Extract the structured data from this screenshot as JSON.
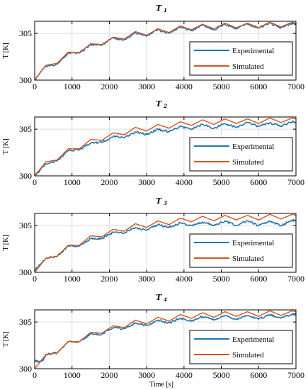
{
  "colors": {
    "experimental": "#1f77b4",
    "simulated": "#d95319"
  },
  "xlabel": "Time [s]",
  "chart_data": [
    {
      "type": "line",
      "title_main": "T",
      "title_sub": "1",
      "ylabel": "T [K]",
      "xlim": [
        0,
        7000
      ],
      "ylim": [
        300,
        306.3
      ],
      "xticks": [
        "0",
        "1000",
        "2000",
        "3000",
        "4000",
        "5000",
        "6000",
        "7000"
      ],
      "yticks": [
        "300",
        "305"
      ],
      "grid": true,
      "legend_position": "lower-right",
      "series": [
        {
          "name": "Experimental",
          "x": [
            0,
            300,
            600,
            900,
            1200,
            1500,
            1800,
            2100,
            2400,
            2700,
            3000,
            3300,
            3600,
            3900,
            4200,
            4500,
            4800,
            5100,
            5400,
            5700,
            6000,
            6300,
            6600,
            6900,
            7000
          ],
          "y": [
            300.0,
            301.5,
            301.7,
            302.9,
            302.9,
            303.8,
            303.8,
            304.5,
            304.3,
            305.1,
            304.7,
            305.4,
            305.0,
            305.7,
            305.3,
            305.9,
            305.4,
            306.0,
            305.5,
            306.0,
            305.6,
            306.1,
            305.6,
            306.1,
            306.0
          ]
        },
        {
          "name": "Simulated",
          "x": [
            0,
            300,
            600,
            900,
            1200,
            1500,
            1800,
            2100,
            2400,
            2700,
            3000,
            3300,
            3600,
            3900,
            4200,
            4500,
            4800,
            5100,
            5400,
            5700,
            6000,
            6300,
            6600,
            6900,
            7000
          ],
          "y": [
            300.0,
            301.6,
            301.8,
            303.0,
            302.9,
            303.9,
            303.8,
            304.6,
            304.4,
            305.2,
            304.8,
            305.5,
            305.1,
            305.8,
            305.4,
            306.0,
            305.5,
            306.1,
            305.6,
            306.1,
            305.6,
            306.2,
            305.7,
            306.2,
            306.1
          ]
        }
      ]
    },
    {
      "type": "line",
      "title_main": "T",
      "title_sub": "2",
      "ylabel": "T [K]",
      "xlim": [
        0,
        7000
      ],
      "ylim": [
        300,
        306.3
      ],
      "xticks": [
        "0",
        "1000",
        "2000",
        "3000",
        "4000",
        "5000",
        "6000",
        "7000"
      ],
      "yticks": [
        "300",
        "305"
      ],
      "grid": true,
      "legend_position": "lower-right",
      "series": [
        {
          "name": "Experimental",
          "x": [
            0,
            300,
            600,
            900,
            1200,
            1500,
            1800,
            2100,
            2400,
            2700,
            3000,
            3300,
            3600,
            3900,
            4200,
            4500,
            4800,
            5100,
            5400,
            5700,
            6000,
            6300,
            6600,
            6900,
            7000
          ],
          "y": [
            300.0,
            301.3,
            301.6,
            302.7,
            302.8,
            303.5,
            303.6,
            304.2,
            304.1,
            304.7,
            304.4,
            305.0,
            304.7,
            305.3,
            305.0,
            305.5,
            305.1,
            305.6,
            305.2,
            305.7,
            305.3,
            305.7,
            305.3,
            305.8,
            305.7
          ]
        },
        {
          "name": "Simulated",
          "x": [
            0,
            300,
            600,
            900,
            1200,
            1500,
            1800,
            2100,
            2400,
            2700,
            3000,
            3300,
            3600,
            3900,
            4200,
            4500,
            4800,
            5100,
            5400,
            5700,
            6000,
            6300,
            6600,
            6900,
            7000
          ],
          "y": [
            300.0,
            301.5,
            301.7,
            302.9,
            302.9,
            303.9,
            303.8,
            304.6,
            304.4,
            305.2,
            304.8,
            305.5,
            305.1,
            305.8,
            305.4,
            306.0,
            305.5,
            306.1,
            305.6,
            306.1,
            305.6,
            306.2,
            305.7,
            306.2,
            306.1
          ]
        }
      ]
    },
    {
      "type": "line",
      "title_main": "T",
      "title_sub": "3",
      "ylabel": "T [K]",
      "xlim": [
        0,
        7000
      ],
      "ylim": [
        300,
        306.3
      ],
      "xticks": [
        "0",
        "1000",
        "2000",
        "3000",
        "4000",
        "5000",
        "6000",
        "7000"
      ],
      "yticks": [
        "300",
        "305"
      ],
      "grid": true,
      "legend_position": "lower-right",
      "series": [
        {
          "name": "Experimental",
          "x": [
            0,
            300,
            600,
            900,
            1200,
            1500,
            1800,
            2100,
            2400,
            2700,
            3000,
            3300,
            3600,
            3900,
            4200,
            4500,
            4800,
            5100,
            5400,
            5700,
            6000,
            6300,
            6600,
            6900,
            7000
          ],
          "y": [
            300.2,
            301.5,
            301.7,
            302.8,
            302.8,
            303.6,
            303.6,
            304.3,
            304.2,
            304.8,
            304.5,
            305.1,
            304.8,
            305.3,
            305.0,
            305.4,
            305.0,
            305.5,
            305.0,
            305.5,
            305.0,
            305.5,
            305.0,
            305.6,
            305.5
          ]
        },
        {
          "name": "Simulated",
          "x": [
            0,
            300,
            600,
            900,
            1200,
            1500,
            1800,
            2100,
            2400,
            2700,
            3000,
            3300,
            3600,
            3900,
            4200,
            4500,
            4800,
            5100,
            5400,
            5700,
            6000,
            6300,
            6600,
            6900,
            7000
          ],
          "y": [
            300.0,
            301.5,
            301.7,
            302.9,
            302.9,
            303.9,
            303.8,
            304.6,
            304.4,
            305.2,
            304.8,
            305.5,
            305.1,
            305.8,
            305.4,
            306.0,
            305.5,
            306.1,
            305.6,
            306.1,
            305.6,
            306.2,
            305.7,
            306.2,
            306.1
          ]
        }
      ]
    },
    {
      "type": "line",
      "title_main": "T",
      "title_sub": "4",
      "ylabel": "T [K]",
      "xlabel": "Time [s]",
      "xlim": [
        0,
        7000
      ],
      "ylim": [
        300,
        306.3
      ],
      "xticks": [
        "0",
        "1000",
        "2000",
        "3000",
        "4000",
        "5000",
        "6000",
        "7000"
      ],
      "yticks": [
        "300",
        "305"
      ],
      "grid": true,
      "legend_position": "lower-right",
      "series": [
        {
          "name": "Experimental",
          "x": [
            0,
            200,
            300,
            600,
            900,
            1200,
            1500,
            1800,
            2100,
            2400,
            2700,
            3000,
            3300,
            3600,
            3900,
            4200,
            4500,
            4800,
            5100,
            5400,
            5700,
            6000,
            6300,
            6600,
            6900,
            7000
          ],
          "y": [
            300.8,
            300.8,
            301.5,
            301.7,
            302.9,
            302.9,
            303.7,
            303.7,
            304.4,
            304.3,
            304.9,
            304.6,
            305.2,
            304.9,
            305.4,
            305.1,
            305.6,
            305.2,
            305.7,
            305.3,
            305.7,
            305.3,
            305.8,
            305.4,
            305.9,
            305.8
          ]
        },
        {
          "name": "Simulated",
          "x": [
            0,
            300,
            600,
            900,
            1200,
            1500,
            1800,
            2100,
            2400,
            2700,
            3000,
            3300,
            3600,
            3900,
            4200,
            4500,
            4800,
            5100,
            5400,
            5700,
            6000,
            6300,
            6600,
            6900,
            7000
          ],
          "y": [
            300.0,
            301.5,
            301.7,
            302.9,
            302.9,
            303.9,
            303.8,
            304.6,
            304.4,
            305.2,
            304.8,
            305.5,
            305.1,
            305.8,
            305.4,
            306.0,
            305.5,
            306.1,
            305.6,
            306.1,
            305.6,
            306.2,
            305.7,
            306.2,
            306.1
          ]
        }
      ]
    }
  ]
}
